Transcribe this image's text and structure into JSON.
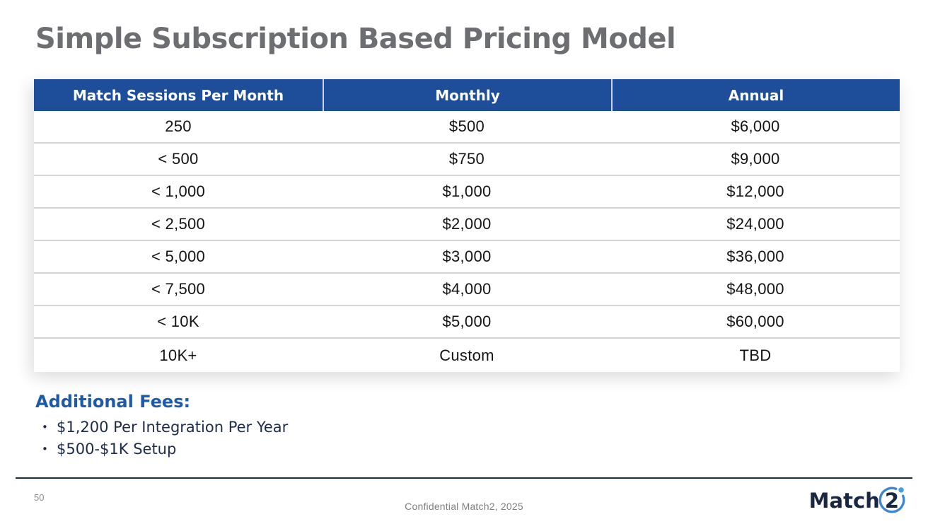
{
  "title": "Simple Subscription Based Pricing Model",
  "table": {
    "headers": [
      "Match Sessions Per Month",
      "Monthly",
      "Annual"
    ],
    "rows": [
      [
        "250",
        "$500",
        "$6,000"
      ],
      [
        "< 500",
        "$750",
        "$9,000"
      ],
      [
        "< 1,000",
        "$1,000",
        "$12,000"
      ],
      [
        "< 2,500",
        "$2,000",
        "$24,000"
      ],
      [
        "< 5,000",
        "$3,000",
        "$36,000"
      ],
      [
        "< 7,500",
        "$4,000",
        "$48,000"
      ],
      [
        "< 10K",
        "$5,000",
        "$60,000"
      ],
      [
        "10K+",
        "Custom",
        "TBD"
      ]
    ]
  },
  "additional_fees": {
    "heading": "Additional Fees:",
    "bullet_glyph": "•",
    "items": [
      "$1,200 Per Integration Per Year",
      "$500-$1K Setup"
    ]
  },
  "footer": {
    "page_number": "50",
    "confidential": "Confidential Match2, 2025",
    "logo_text_main": "Match",
    "logo_text_num": "2"
  },
  "colors": {
    "header_blue": "#1e4e9a",
    "fees_blue": "#1d5aa9",
    "navy_text": "#1e2b4a",
    "title_gray": "#6d6e71",
    "logo_navy": "#1a2742",
    "logo_blue": "#3f86d2"
  }
}
